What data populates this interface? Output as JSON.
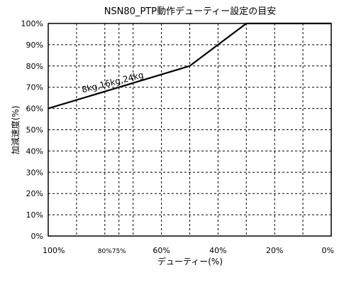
{
  "chart_data": {
    "type": "line",
    "title": "NSN80_PTP動作デューティー設定の目安",
    "xlabel": "デューティー(%)",
    "ylabel": "加減速度(%)",
    "xlim": [
      100,
      0
    ],
    "ylim": [
      0,
      100
    ],
    "grid": true,
    "x_ticks": [
      {
        "value": 100,
        "label": "100%"
      },
      {
        "value": 80,
        "label": "80%"
      },
      {
        "value": 75,
        "label": "75%"
      },
      {
        "value": 60,
        "label": "60%"
      },
      {
        "value": 40,
        "label": "40%"
      },
      {
        "value": 20,
        "label": "20%"
      },
      {
        "value": 0,
        "label": "0%"
      }
    ],
    "x_grid": [
      90,
      80,
      75,
      70,
      60,
      50,
      40,
      30,
      20,
      10
    ],
    "y_ticks": [
      {
        "value": 0,
        "label": "0%"
      },
      {
        "value": 10,
        "label": "10%"
      },
      {
        "value": 20,
        "label": "20%"
      },
      {
        "value": 30,
        "label": "30%"
      },
      {
        "value": 40,
        "label": "40%"
      },
      {
        "value": 50,
        "label": "50%"
      },
      {
        "value": 60,
        "label": "60%"
      },
      {
        "value": 70,
        "label": "70%"
      },
      {
        "value": 80,
        "label": "80%"
      },
      {
        "value": 90,
        "label": "90%"
      },
      {
        "value": 100,
        "label": "100%"
      }
    ],
    "series": [
      {
        "x": [
          100,
          50,
          30,
          0
        ],
        "y": [
          60,
          80,
          100,
          100
        ]
      }
    ],
    "annotations": [
      {
        "text": "8kg,16kg,24kg",
        "x": 77,
        "y": 71
      }
    ],
    "line_color": "#000000"
  }
}
